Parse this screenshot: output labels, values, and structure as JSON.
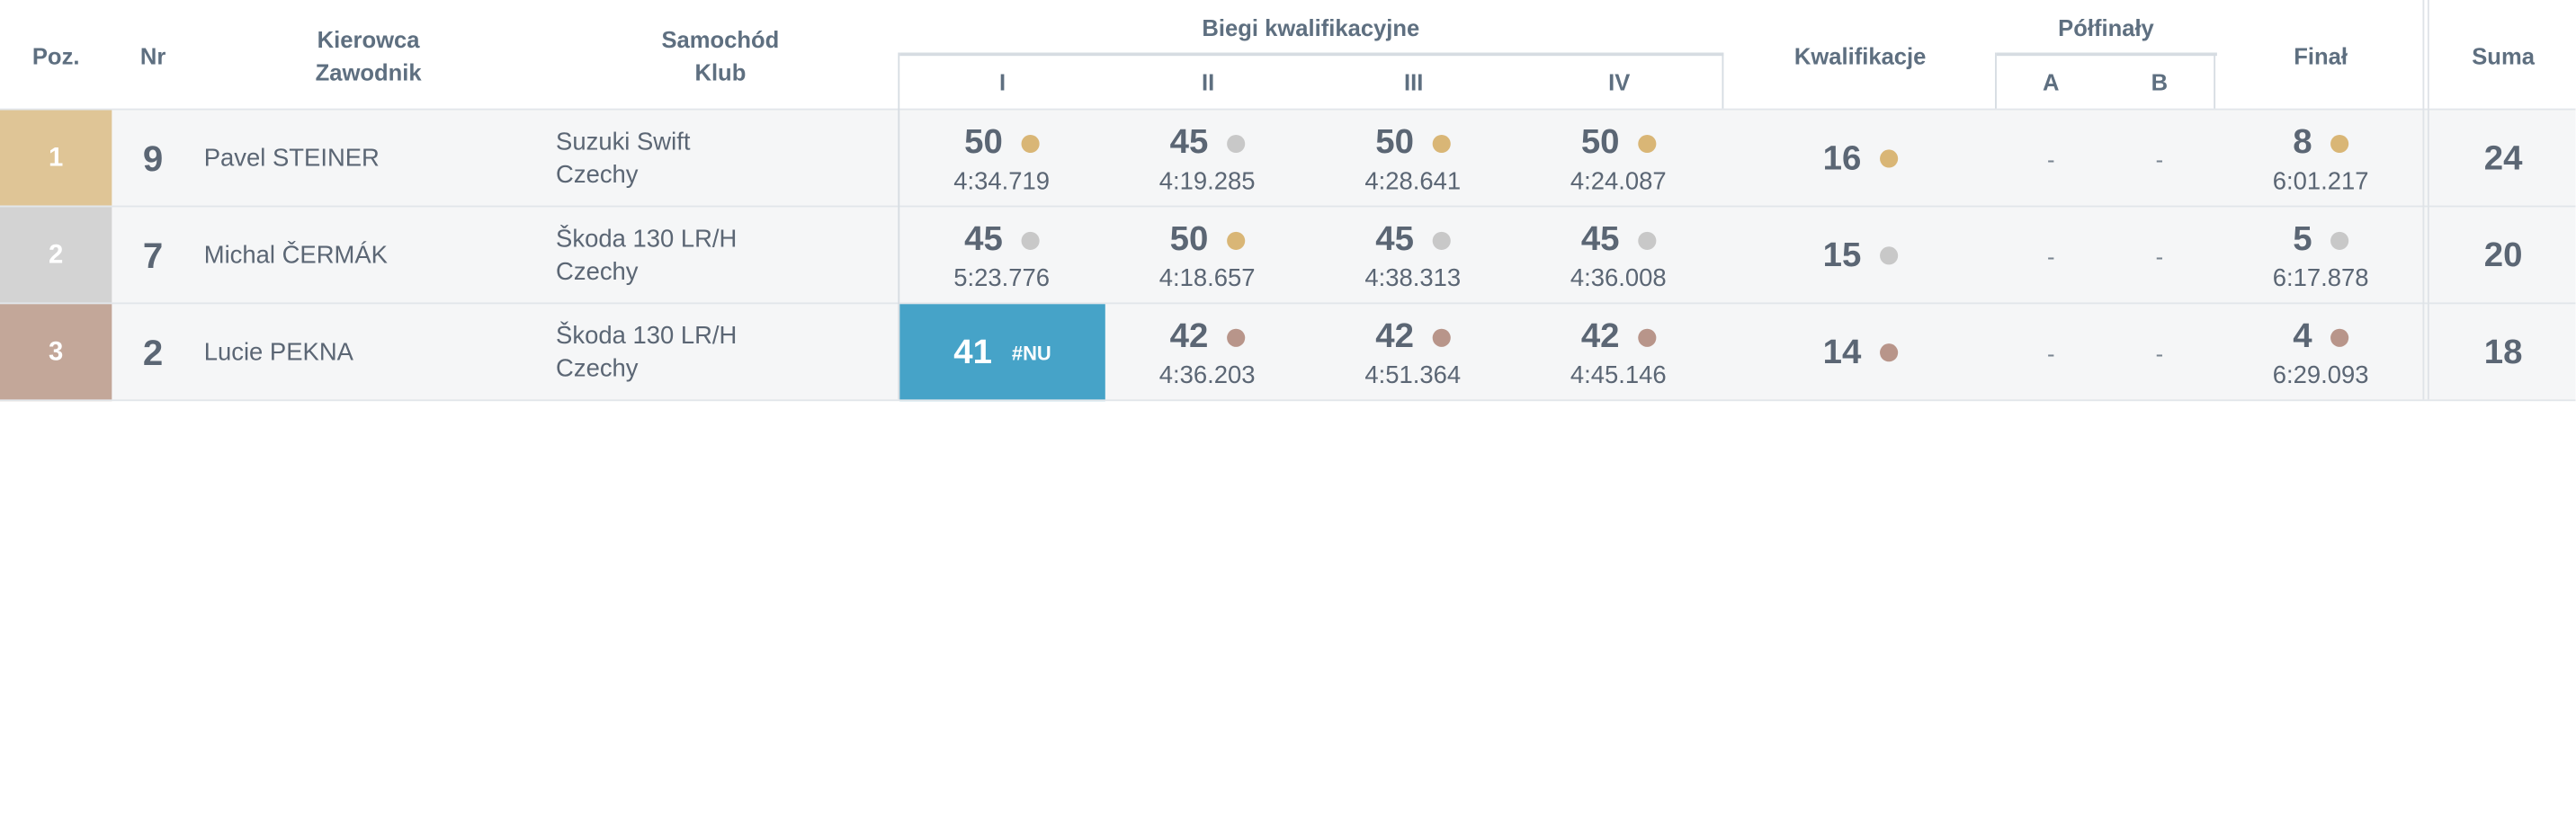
{
  "header": {
    "pos": "Poz.",
    "nr": "Nr",
    "driver_line1": "Kierowca",
    "driver_line2": "Zawodnik",
    "car_line1": "Samochód",
    "car_line2": "Klub",
    "heats_title": "Biegi kwalifikacyjne",
    "heat_labels": [
      "I",
      "II",
      "III",
      "IV"
    ],
    "qualifying": "Kwalifikacje",
    "semis_title": "Półfinały",
    "semi_labels": [
      "A",
      "B"
    ],
    "final": "Finał",
    "sum": "Suma"
  },
  "colors": {
    "gold": "#d9b676",
    "silver": "#c8c8c8",
    "bronze": "#b8958a",
    "highlight": "#46a3c8"
  },
  "rows": [
    {
      "pos": "1",
      "pos_color": "#dfc596",
      "nr": "9",
      "name": "Pavel STEINER",
      "car": "Suzuki Swift",
      "club": "Czechy",
      "heats": [
        {
          "points": "50",
          "time": "4:34.719",
          "medal": "gold"
        },
        {
          "points": "45",
          "time": "4:19.285",
          "medal": "silver"
        },
        {
          "points": "50",
          "time": "4:28.641",
          "medal": "gold"
        },
        {
          "points": "50",
          "time": "4:24.087",
          "medal": "gold"
        }
      ],
      "qualifying": {
        "points": "16",
        "medal": "gold"
      },
      "semi_a": "-",
      "semi_b": "-",
      "final": {
        "points": "8",
        "time": "6:01.217",
        "medal": "gold"
      },
      "sum": "24"
    },
    {
      "pos": "2",
      "pos_color": "#d3d3d3",
      "nr": "7",
      "name": "Michal ČERMÁK",
      "car": "Škoda 130 LR/H",
      "club": "Czechy",
      "heats": [
        {
          "points": "45",
          "time": "5:23.776",
          "medal": "silver"
        },
        {
          "points": "50",
          "time": "4:18.657",
          "medal": "gold"
        },
        {
          "points": "45",
          "time": "4:38.313",
          "medal": "silver"
        },
        {
          "points": "45",
          "time": "4:36.008",
          "medal": "silver"
        }
      ],
      "qualifying": {
        "points": "15",
        "medal": "silver"
      },
      "semi_a": "-",
      "semi_b": "-",
      "final": {
        "points": "5",
        "time": "6:17.878",
        "medal": "silver"
      },
      "sum": "20"
    },
    {
      "pos": "3",
      "pos_color": "#c3a799",
      "nr": "2",
      "name": "Lucie PEKNA",
      "car": "Škoda 130 LR/H",
      "club": "Czechy",
      "heat1_highlight": {
        "points": "41",
        "tag": "#NU"
      },
      "heats": [
        {
          "points": "42",
          "time": "4:36.203",
          "medal": "bronze"
        },
        {
          "points": "42",
          "time": "4:51.364",
          "medal": "bronze"
        },
        {
          "points": "42",
          "time": "4:45.146",
          "medal": "bronze"
        }
      ],
      "qualifying": {
        "points": "14",
        "medal": "bronze"
      },
      "semi_a": "-",
      "semi_b": "-",
      "final": {
        "points": "4",
        "time": "6:29.093",
        "medal": "bronze"
      },
      "sum": "18"
    }
  ]
}
